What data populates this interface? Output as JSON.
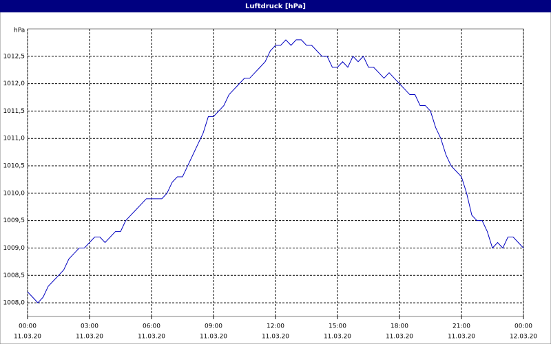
{
  "chart_data": {
    "type": "line",
    "title": "Luftdruck [hPa]",
    "y_label": "hPa",
    "x": [
      0,
      0.25,
      0.5,
      0.75,
      1,
      1.25,
      1.5,
      1.75,
      2,
      2.25,
      2.5,
      2.75,
      3,
      3.25,
      3.5,
      3.75,
      4,
      4.25,
      4.5,
      4.75,
      5,
      5.25,
      5.5,
      5.75,
      6,
      6.5,
      6.75,
      7,
      7.25,
      7.5,
      7.75,
      8,
      8.25,
      8.5,
      8.75,
      9,
      9.25,
      9.5,
      9.75,
      10,
      10.25,
      10.5,
      10.75,
      11,
      11.25,
      11.5,
      11.75,
      12,
      12.25,
      12.5,
      12.75,
      13,
      13.25,
      13.5,
      13.75,
      14,
      14.25,
      14.5,
      14.75,
      15,
      15.25,
      15.5,
      15.75,
      16,
      16.25,
      16.5,
      16.75,
      17,
      17.25,
      17.5,
      17.75,
      18,
      18.25,
      18.5,
      18.75,
      19,
      19.25,
      19.5,
      19.75,
      20,
      20.25,
      20.5,
      20.75,
      21,
      21.25,
      21.5,
      21.75,
      22,
      22.25,
      22.5,
      22.75,
      23,
      23.25,
      23.5,
      23.75,
      24
    ],
    "series": [
      {
        "name": "Luftdruck",
        "color": "#0000c0",
        "values": [
          1008.2,
          1008.1,
          1008.0,
          1008.1,
          1008.3,
          1008.4,
          1008.5,
          1008.6,
          1008.8,
          1008.9,
          1009.0,
          1009.0,
          1009.1,
          1009.2,
          1009.2,
          1009.1,
          1009.2,
          1009.3,
          1009.3,
          1009.5,
          1009.6,
          1009.7,
          1009.8,
          1009.9,
          1009.9,
          1009.9,
          1010.0,
          1010.2,
          1010.3,
          1010.3,
          1010.5,
          1010.7,
          1010.9,
          1011.1,
          1011.4,
          1011.4,
          1011.5,
          1011.6,
          1011.8,
          1011.9,
          1012.0,
          1012.1,
          1012.1,
          1012.2,
          1012.3,
          1012.4,
          1012.6,
          1012.7,
          1012.7,
          1012.8,
          1012.7,
          1012.8,
          1012.8,
          1012.7,
          1012.7,
          1012.6,
          1012.5,
          1012.5,
          1012.3,
          1012.3,
          1012.4,
          1012.3,
          1012.5,
          1012.4,
          1012.5,
          1012.3,
          1012.3,
          1012.2,
          1012.1,
          1012.2,
          1012.1,
          1012.0,
          1011.9,
          1011.8,
          1011.8,
          1011.6,
          1011.6,
          1011.5,
          1011.2,
          1011.0,
          1010.7,
          1010.5,
          1010.4,
          1010.3,
          1010.0,
          1009.6,
          1009.5,
          1009.5,
          1009.3,
          1009.0,
          1009.1,
          1009.0,
          1009.2,
          1009.2,
          1009.1,
          1009.0
        ]
      }
    ],
    "xlim": [
      0,
      24
    ],
    "xticks": [
      {
        "value": 0,
        "label": "00:00"
      },
      {
        "value": 3,
        "label": "03:00"
      },
      {
        "value": 6,
        "label": "06:00"
      },
      {
        "value": 9,
        "label": "09:00"
      },
      {
        "value": 12,
        "label": "12:00"
      },
      {
        "value": 15,
        "label": "15:00"
      },
      {
        "value": 18,
        "label": "18:00"
      },
      {
        "value": 21,
        "label": "21:00"
      },
      {
        "value": 24,
        "label": "00:00"
      }
    ],
    "xtick_dates": [
      "11.03.20",
      "11.03.20",
      "11.03.20",
      "11.03.20",
      "11.03.20",
      "11.03.20",
      "11.03.20",
      "11.03.20",
      "12.03.20"
    ],
    "ylim": [
      1007.75,
      1013.0
    ],
    "yticks": [
      {
        "value": 1008.0,
        "label": "1008,0"
      },
      {
        "value": 1008.5,
        "label": "1008,5"
      },
      {
        "value": 1009.0,
        "label": "1009,0"
      },
      {
        "value": 1009.5,
        "label": "1009,5"
      },
      {
        "value": 1010.0,
        "label": "1010,0"
      },
      {
        "value": 1010.5,
        "label": "1010,5"
      },
      {
        "value": 1011.0,
        "label": "1011,0"
      },
      {
        "value": 1011.5,
        "label": "1011,5"
      },
      {
        "value": 1012.0,
        "label": "1012,0"
      },
      {
        "value": 1012.5,
        "label": "1012,5"
      }
    ],
    "grid": true
  }
}
